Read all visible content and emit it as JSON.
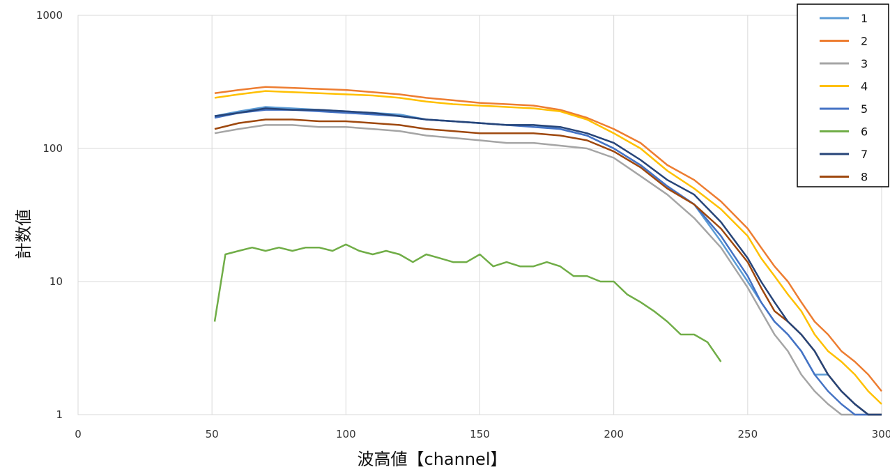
{
  "chart_data": {
    "type": "line",
    "title": "",
    "xlabel": "波高値【channel】",
    "ylabel": "計数値",
    "xlim": [
      0,
      300
    ],
    "ylim": [
      1,
      1000
    ],
    "yscale": "log",
    "xticks": [
      "0",
      "50",
      "100",
      "150",
      "200",
      "250",
      "300"
    ],
    "yticks": [
      "1",
      "10",
      "100",
      "1000"
    ],
    "grid": true,
    "legend_position": "top-right",
    "series": [
      {
        "name": "1",
        "color": "#5b9bd5",
        "x": [
          51,
          60,
          70,
          80,
          90,
          100,
          110,
          120,
          130,
          140,
          150,
          160,
          170,
          180,
          190,
          200,
          210,
          220,
          230,
          240,
          250,
          255,
          260,
          265,
          270,
          275,
          280,
          285,
          290,
          295,
          300
        ],
        "y": [
          175,
          190,
          205,
          200,
          195,
          190,
          185,
          180,
          165,
          160,
          155,
          150,
          150,
          140,
          125,
          100,
          75,
          52,
          38,
          20,
          10,
          7,
          5,
          4,
          3,
          2,
          2,
          1.5,
          1.2,
          1,
          1
        ]
      },
      {
        "name": "2",
        "color": "#ed7d31",
        "x": [
          51,
          60,
          70,
          80,
          90,
          100,
          110,
          120,
          130,
          140,
          150,
          160,
          170,
          180,
          190,
          200,
          210,
          220,
          230,
          240,
          250,
          255,
          260,
          265,
          270,
          275,
          280,
          285,
          290,
          295,
          300
        ],
        "y": [
          260,
          275,
          290,
          285,
          280,
          275,
          265,
          255,
          240,
          230,
          220,
          215,
          210,
          195,
          170,
          140,
          110,
          75,
          58,
          40,
          25,
          18,
          13,
          10,
          7,
          5,
          4,
          3,
          2.5,
          2,
          1.5
        ]
      },
      {
        "name": "3",
        "color": "#a5a5a5",
        "x": [
          51,
          60,
          70,
          80,
          90,
          100,
          110,
          120,
          130,
          140,
          150,
          160,
          170,
          180,
          190,
          200,
          210,
          220,
          230,
          240,
          250,
          255,
          260,
          265,
          270,
          275,
          280,
          285,
          290,
          295,
          300
        ],
        "y": [
          130,
          140,
          150,
          150,
          145,
          145,
          140,
          135,
          125,
          120,
          115,
          110,
          110,
          105,
          100,
          85,
          62,
          45,
          30,
          18,
          9,
          6,
          4,
          3,
          2,
          1.5,
          1.2,
          1,
          1,
          1,
          1
        ]
      },
      {
        "name": "4",
        "color": "#ffc000",
        "x": [
          51,
          60,
          70,
          80,
          90,
          100,
          110,
          120,
          130,
          140,
          150,
          160,
          170,
          180,
          190,
          200,
          210,
          220,
          230,
          240,
          250,
          255,
          260,
          265,
          270,
          275,
          280,
          285,
          290,
          295,
          300
        ],
        "y": [
          240,
          255,
          270,
          265,
          260,
          255,
          250,
          240,
          225,
          215,
          210,
          205,
          200,
          190,
          165,
          130,
          100,
          68,
          50,
          35,
          22,
          15,
          11,
          8,
          6,
          4,
          3,
          2.5,
          2,
          1.5,
          1.2
        ]
      },
      {
        "name": "5",
        "color": "#4472c4",
        "x": [
          51,
          60,
          70,
          80,
          90,
          100,
          110,
          120,
          130,
          140,
          150,
          160,
          170,
          180,
          190,
          200,
          210,
          220,
          230,
          240,
          250,
          255,
          260,
          265,
          270,
          275,
          280,
          285,
          290,
          295,
          300
        ],
        "y": [
          170,
          185,
          195,
          195,
          190,
          185,
          180,
          175,
          165,
          160,
          155,
          150,
          145,
          140,
          125,
          100,
          75,
          52,
          38,
          22,
          11,
          7,
          5,
          4,
          3,
          2,
          1.5,
          1.2,
          1,
          1,
          1
        ]
      },
      {
        "name": "6",
        "color": "#70ad47",
        "x": [
          51,
          55,
          60,
          65,
          70,
          75,
          80,
          85,
          90,
          95,
          100,
          105,
          110,
          115,
          120,
          125,
          130,
          135,
          140,
          145,
          150,
          155,
          160,
          165,
          170,
          175,
          180,
          185,
          190,
          195,
          200,
          205,
          210,
          215,
          220,
          225,
          230,
          235,
          240
        ],
        "y": [
          5,
          16,
          17,
          18,
          17,
          18,
          17,
          18,
          18,
          17,
          19,
          17,
          16,
          17,
          16,
          14,
          16,
          15,
          14,
          14,
          16,
          13,
          14,
          13,
          13,
          14,
          13,
          11,
          11,
          10,
          10,
          8,
          7,
          6,
          5,
          4,
          4,
          3.5,
          2.5
        ]
      },
      {
        "name": "7",
        "color": "#264478",
        "x": [
          51,
          60,
          70,
          80,
          90,
          100,
          110,
          120,
          130,
          140,
          150,
          160,
          170,
          180,
          190,
          200,
          210,
          220,
          230,
          240,
          250,
          255,
          260,
          265,
          270,
          275,
          280,
          285,
          290,
          295,
          300
        ],
        "y": [
          175,
          185,
          200,
          195,
          195,
          190,
          185,
          175,
          165,
          160,
          155,
          150,
          150,
          145,
          130,
          110,
          82,
          58,
          45,
          28,
          15,
          10,
          7,
          5,
          4,
          3,
          2,
          1.5,
          1.2,
          1,
          1
        ]
      },
      {
        "name": "8",
        "color": "#9e480e",
        "x": [
          51,
          60,
          70,
          80,
          90,
          100,
          110,
          120,
          130,
          140,
          150,
          160,
          170,
          180,
          190,
          200,
          210,
          220,
          230,
          240,
          250,
          255,
          260,
          265,
          270,
          275,
          280,
          285,
          290,
          295,
          300
        ],
        "y": [
          140,
          155,
          165,
          165,
          160,
          160,
          155,
          150,
          140,
          135,
          130,
          130,
          130,
          125,
          115,
          95,
          72,
          50,
          38,
          25,
          14,
          9,
          6,
          5,
          4,
          3,
          2,
          1.5,
          1.2,
          1,
          1
        ]
      }
    ]
  }
}
